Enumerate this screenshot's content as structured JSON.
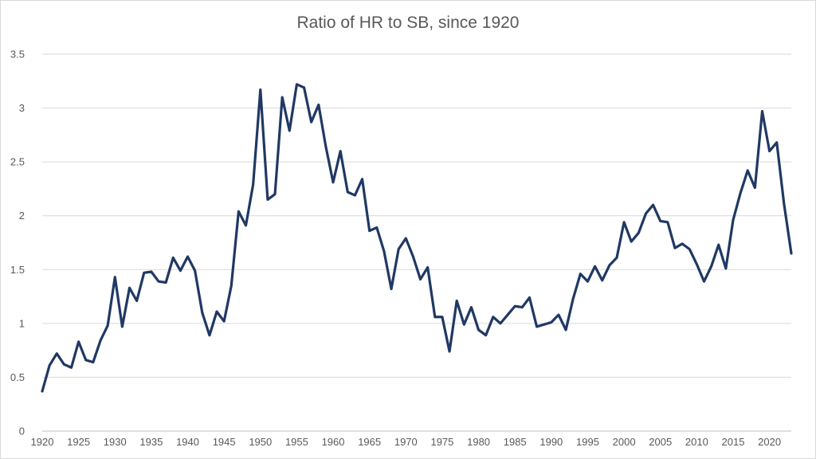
{
  "chart_data": {
    "type": "line",
    "title": "Ratio of HR to SB, since 1920",
    "xlabel": "",
    "ylabel": "",
    "xlim": [
      1920,
      2023
    ],
    "ylim": [
      0,
      3.5
    ],
    "x_ticks": [
      1920,
      1925,
      1930,
      1935,
      1940,
      1945,
      1950,
      1955,
      1960,
      1965,
      1970,
      1975,
      1980,
      1985,
      1990,
      1995,
      2000,
      2005,
      2010,
      2015,
      2020
    ],
    "y_ticks": [
      0,
      0.5,
      1,
      1.5,
      2,
      2.5,
      3,
      3.5
    ],
    "y_tick_labels": [
      "0",
      "0.5",
      "1",
      "1.5",
      "2",
      "2.5",
      "3",
      "3.5"
    ],
    "grid": "horizontal",
    "legend": "none",
    "series": [
      {
        "color": "#203864",
        "x": [
          1920,
          1921,
          1922,
          1923,
          1924,
          1925,
          1926,
          1927,
          1928,
          1929,
          1930,
          1931,
          1932,
          1933,
          1934,
          1935,
          1936,
          1937,
          1938,
          1939,
          1940,
          1941,
          1942,
          1943,
          1944,
          1945,
          1946,
          1947,
          1948,
          1949,
          1950,
          1951,
          1952,
          1953,
          1954,
          1955,
          1956,
          1957,
          1958,
          1959,
          1960,
          1961,
          1962,
          1963,
          1964,
          1965,
          1966,
          1967,
          1968,
          1969,
          1970,
          1971,
          1972,
          1973,
          1974,
          1975,
          1976,
          1977,
          1978,
          1979,
          1980,
          1981,
          1982,
          1983,
          1984,
          1985,
          1986,
          1987,
          1988,
          1989,
          1990,
          1991,
          1992,
          1993,
          1994,
          1995,
          1996,
          1997,
          1998,
          1999,
          2000,
          2001,
          2002,
          2003,
          2004,
          2005,
          2006,
          2007,
          2008,
          2009,
          2010,
          2011,
          2012,
          2013,
          2014,
          2015,
          2016,
          2017,
          2018,
          2019,
          2020,
          2021,
          2022,
          2023
        ],
        "y": [
          0.37,
          0.61,
          0.72,
          0.62,
          0.59,
          0.83,
          0.66,
          0.64,
          0.84,
          0.98,
          1.43,
          0.97,
          1.33,
          1.21,
          1.47,
          1.48,
          1.39,
          1.38,
          1.61,
          1.49,
          1.62,
          1.49,
          1.1,
          0.89,
          1.11,
          1.02,
          1.35,
          2.04,
          1.91,
          2.29,
          3.17,
          2.15,
          2.2,
          3.1,
          2.79,
          3.22,
          3.19,
          2.87,
          3.03,
          2.64,
          2.31,
          2.6,
          2.22,
          2.19,
          2.34,
          1.86,
          1.89,
          1.67,
          1.32,
          1.69,
          1.79,
          1.62,
          1.41,
          1.52,
          1.06,
          1.06,
          0.74,
          1.21,
          0.99,
          1.15,
          0.94,
          0.89,
          1.06,
          1.0,
          1.08,
          1.16,
          1.15,
          1.24,
          0.97,
          0.99,
          1.01,
          1.08,
          0.94,
          1.23,
          1.46,
          1.39,
          1.53,
          1.4,
          1.54,
          1.61,
          1.94,
          1.76,
          1.84,
          2.02,
          2.1,
          1.95,
          1.94,
          1.7,
          1.74,
          1.69,
          1.55,
          1.39,
          1.53,
          1.73,
          1.51,
          1.96,
          2.21,
          2.42,
          2.26,
          2.97,
          2.6,
          2.68,
          2.11,
          1.65
        ]
      }
    ]
  }
}
